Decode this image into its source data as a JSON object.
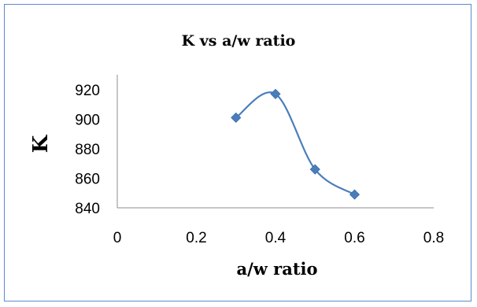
{
  "chart_data": {
    "type": "scatter",
    "title": "K vs a/w ratio",
    "xlabel": "a/w ratio",
    "ylabel": "K",
    "xlim": [
      0,
      0.8
    ],
    "ylim": [
      840,
      930
    ],
    "xticks": [
      "0",
      "0.2",
      "0.4",
      "0.6",
      "0.8"
    ],
    "yticks": [
      "840",
      "860",
      "880",
      "900",
      "920"
    ],
    "grid": false,
    "legend": "none",
    "smooth_line": true,
    "marker": "diamond",
    "series": [
      {
        "x": [
          0.3,
          0.4,
          0.5,
          0.6
        ],
        "y": [
          901,
          917,
          866,
          849
        ],
        "color": "#4a7ebb"
      }
    ]
  }
}
